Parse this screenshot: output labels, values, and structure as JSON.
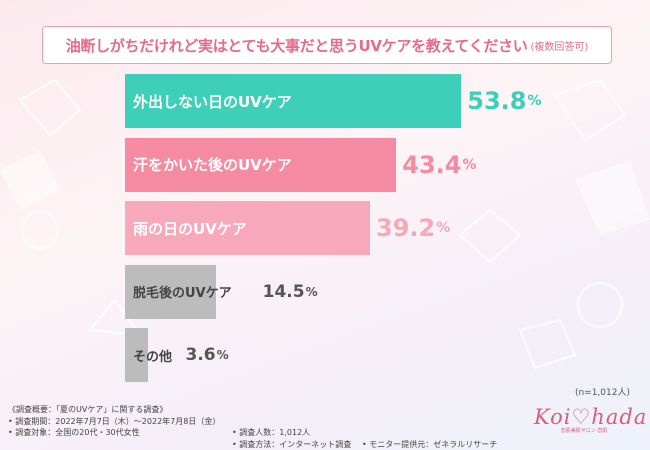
{
  "title": {
    "main": "油断しがちだけれど実はとても大事だと思うUVケアを教えてください",
    "sub": "(複数回答可)"
  },
  "chart_data": {
    "type": "bar",
    "orientation": "horizontal",
    "categories": [
      "外出しない日のUVケア",
      "汗をかいた後のUVケア",
      "雨の日のUVケア",
      "脱毛後のUVケア",
      "その他"
    ],
    "values": [
      53.8,
      43.4,
      39.2,
      14.5,
      3.6
    ],
    "value_labels": [
      {
        "num": "53.8",
        "unit": "%"
      },
      {
        "num": "43.4",
        "unit": "%"
      },
      {
        "num": "39.2",
        "unit": "%"
      },
      {
        "num": "14.5",
        "unit": "%"
      },
      {
        "num": "3.6",
        "unit": "%"
      }
    ],
    "colors": [
      "#3ecfb8",
      "#f58ba2",
      "#f7a8ba",
      "#bcbcbc",
      "#bcbcbc"
    ],
    "value_colors": [
      "#3ecfb8",
      "#f58ba2",
      "#f7a8ba",
      "#555555",
      "#555555"
    ],
    "label_colors": [
      "#ffffff",
      "#ffffff",
      "#ffffff",
      "#444444",
      "#444444"
    ],
    "xlim": [
      0,
      100
    ],
    "grid": false
  },
  "note": "(n=1,012人)",
  "footer": {
    "line1": "《調査概要：「夏のUVケア」に関する調査》",
    "line2": "• 調査期間：2022年7月7日（木）～2022年7月8日（金）",
    "line3": "• 調査対象：全国の20代・30代女性",
    "col2_line1": "• 調査人数：1,012人",
    "col2_line2": "• 調査方法：インターネット調査",
    "col3": "• モニター提供元：ゼネラルリサーチ"
  },
  "logo": {
    "text": "Koi♡hada",
    "sub": "恋肌美肌サロン 恋肌"
  },
  "colors": {
    "accent": "#e66a8a"
  }
}
